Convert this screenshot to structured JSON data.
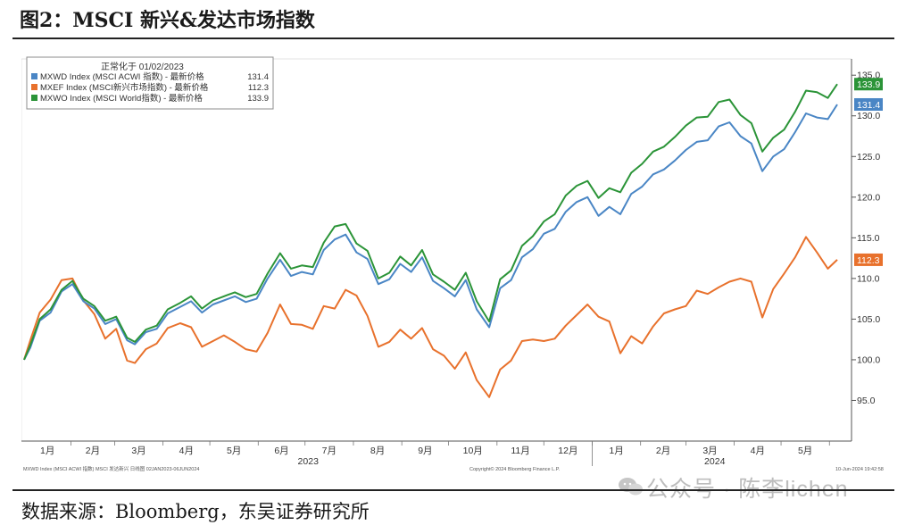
{
  "header": {
    "title": "图2：MSCI 新兴&发达市场指数"
  },
  "footer": {
    "source": "数据来源：Bloomberg，东吴证券研究所",
    "watermark": "公众号 · 陈李lichen",
    "note_left": "MXWD Index (MSCI ACWI 指数) MSCI 发达新兴  日线图 02JAN2023-06JUN2024",
    "note_center": "Copyright© 2024 Bloomberg Finance L.P.",
    "note_right": "10-Jun-2024 19:42:58"
  },
  "chart_data": {
    "type": "line",
    "legend": {
      "header": "正常化于 01/02/2023",
      "placement": "top-left"
    },
    "x_ticks": [
      "1月",
      "2月",
      "3月",
      "4月",
      "5月",
      "6月",
      "7月",
      "8月",
      "9月",
      "10月",
      "11月",
      "12月",
      "1月",
      "2月",
      "3月",
      "4月",
      "5月"
    ],
    "year_labels": [
      "2023",
      "2024"
    ],
    "ylim": [
      90,
      137
    ],
    "y_ticks": [
      "95.0",
      "100.0",
      "105.0",
      "110.0",
      "115.0",
      "120.0",
      "125.0",
      "130.0",
      "135.0"
    ],
    "y_tick_values": [
      95,
      100,
      105,
      110,
      115,
      120,
      125,
      130,
      135
    ],
    "grid": false,
    "x_range": [
      "2023-01-02",
      "2024-06-06"
    ],
    "series": [
      {
        "name": "MXWD Index (MSCI ACWI 指数) - 最新价格",
        "last_label": "131.4",
        "color": "#4a86c5",
        "points": [
          [
            "2023-01-02",
            100.0
          ],
          [
            "2023-01-06",
            101.5
          ],
          [
            "2023-01-12",
            104.8
          ],
          [
            "2023-01-19",
            105.8
          ],
          [
            "2023-01-26",
            108.4
          ],
          [
            "2023-02-02",
            109.3
          ],
          [
            "2023-02-09",
            107.2
          ],
          [
            "2023-02-16",
            106.3
          ],
          [
            "2023-02-23",
            104.4
          ],
          [
            "2023-03-02",
            105.0
          ],
          [
            "2023-03-09",
            102.4
          ],
          [
            "2023-03-14",
            101.9
          ],
          [
            "2023-03-21",
            103.4
          ],
          [
            "2023-03-28",
            103.8
          ],
          [
            "2023-04-04",
            105.7
          ],
          [
            "2023-04-12",
            106.5
          ],
          [
            "2023-04-19",
            107.2
          ],
          [
            "2023-04-26",
            105.8
          ],
          [
            "2023-05-03",
            106.8
          ],
          [
            "2023-05-10",
            107.3
          ],
          [
            "2023-05-17",
            107.8
          ],
          [
            "2023-05-24",
            107.1
          ],
          [
            "2023-05-31",
            107.5
          ],
          [
            "2023-06-07",
            110.0
          ],
          [
            "2023-06-15",
            112.3
          ],
          [
            "2023-06-22",
            110.3
          ],
          [
            "2023-06-29",
            110.8
          ],
          [
            "2023-07-06",
            110.5
          ],
          [
            "2023-07-13",
            113.5
          ],
          [
            "2023-07-20",
            114.8
          ],
          [
            "2023-07-27",
            115.4
          ],
          [
            "2023-08-03",
            113.2
          ],
          [
            "2023-08-10",
            112.4
          ],
          [
            "2023-08-17",
            109.3
          ],
          [
            "2023-08-24",
            109.9
          ],
          [
            "2023-08-31",
            111.8
          ],
          [
            "2023-09-07",
            110.8
          ],
          [
            "2023-09-14",
            112.6
          ],
          [
            "2023-09-21",
            109.7
          ],
          [
            "2023-09-28",
            108.8
          ],
          [
            "2023-10-05",
            107.8
          ],
          [
            "2023-10-12",
            109.8
          ],
          [
            "2023-10-19",
            106.2
          ],
          [
            "2023-10-27",
            104.0
          ],
          [
            "2023-11-03",
            108.8
          ],
          [
            "2023-11-10",
            109.8
          ],
          [
            "2023-11-17",
            112.6
          ],
          [
            "2023-11-24",
            113.6
          ],
          [
            "2023-12-01",
            115.5
          ],
          [
            "2023-12-08",
            116.1
          ],
          [
            "2023-12-15",
            118.2
          ],
          [
            "2023-12-22",
            119.4
          ],
          [
            "2023-12-29",
            120.0
          ],
          [
            "2024-01-05",
            117.7
          ],
          [
            "2024-01-12",
            118.8
          ],
          [
            "2024-01-19",
            117.9
          ],
          [
            "2024-01-26",
            120.4
          ],
          [
            "2024-02-02",
            121.3
          ],
          [
            "2024-02-09",
            122.8
          ],
          [
            "2024-02-16",
            123.4
          ],
          [
            "2024-02-23",
            124.5
          ],
          [
            "2024-03-01",
            125.8
          ],
          [
            "2024-03-08",
            126.8
          ],
          [
            "2024-03-15",
            127.0
          ],
          [
            "2024-03-22",
            128.7
          ],
          [
            "2024-03-29",
            129.2
          ],
          [
            "2024-04-05",
            127.5
          ],
          [
            "2024-04-12",
            126.6
          ],
          [
            "2024-04-19",
            123.2
          ],
          [
            "2024-04-26",
            125.0
          ],
          [
            "2024-05-03",
            125.9
          ],
          [
            "2024-05-10",
            128.0
          ],
          [
            "2024-05-17",
            130.3
          ],
          [
            "2024-05-24",
            129.8
          ],
          [
            "2024-05-31",
            129.6
          ],
          [
            "2024-06-06",
            131.4
          ]
        ]
      },
      {
        "name": "MXEF Index (MSCI新兴市场指数) - 最新价格",
        "last_label": "112.3",
        "color": "#e8712c",
        "points": [
          [
            "2023-01-02",
            100.0
          ],
          [
            "2023-01-06",
            102.4
          ],
          [
            "2023-01-12",
            105.8
          ],
          [
            "2023-01-19",
            107.4
          ],
          [
            "2023-01-26",
            109.8
          ],
          [
            "2023-02-02",
            110.0
          ],
          [
            "2023-02-09",
            107.3
          ],
          [
            "2023-02-16",
            105.6
          ],
          [
            "2023-02-23",
            102.6
          ],
          [
            "2023-03-02",
            103.8
          ],
          [
            "2023-03-09",
            99.9
          ],
          [
            "2023-03-14",
            99.6
          ],
          [
            "2023-03-21",
            101.3
          ],
          [
            "2023-03-28",
            102.0
          ],
          [
            "2023-04-04",
            103.9
          ],
          [
            "2023-04-12",
            104.5
          ],
          [
            "2023-04-19",
            104.0
          ],
          [
            "2023-04-26",
            101.6
          ],
          [
            "2023-05-03",
            102.3
          ],
          [
            "2023-05-10",
            103.0
          ],
          [
            "2023-05-17",
            102.2
          ],
          [
            "2023-05-24",
            101.3
          ],
          [
            "2023-05-31",
            101.0
          ],
          [
            "2023-06-07",
            103.3
          ],
          [
            "2023-06-15",
            106.8
          ],
          [
            "2023-06-22",
            104.4
          ],
          [
            "2023-06-29",
            104.3
          ],
          [
            "2023-07-06",
            103.8
          ],
          [
            "2023-07-13",
            106.6
          ],
          [
            "2023-07-20",
            106.3
          ],
          [
            "2023-07-27",
            108.6
          ],
          [
            "2023-08-03",
            107.9
          ],
          [
            "2023-08-10",
            105.4
          ],
          [
            "2023-08-17",
            101.6
          ],
          [
            "2023-08-24",
            102.2
          ],
          [
            "2023-08-31",
            103.7
          ],
          [
            "2023-09-07",
            102.6
          ],
          [
            "2023-09-14",
            103.9
          ],
          [
            "2023-09-21",
            101.3
          ],
          [
            "2023-09-28",
            100.5
          ],
          [
            "2023-10-05",
            98.9
          ],
          [
            "2023-10-12",
            100.9
          ],
          [
            "2023-10-19",
            97.5
          ],
          [
            "2023-10-27",
            95.4
          ],
          [
            "2023-11-03",
            98.8
          ],
          [
            "2023-11-10",
            99.9
          ],
          [
            "2023-11-17",
            102.3
          ],
          [
            "2023-11-24",
            102.5
          ],
          [
            "2023-12-01",
            102.3
          ],
          [
            "2023-12-08",
            102.6
          ],
          [
            "2023-12-15",
            104.2
          ],
          [
            "2023-12-22",
            105.5
          ],
          [
            "2023-12-29",
            106.8
          ],
          [
            "2024-01-05",
            105.3
          ],
          [
            "2024-01-12",
            104.7
          ],
          [
            "2024-01-19",
            100.8
          ],
          [
            "2024-01-26",
            102.9
          ],
          [
            "2024-02-02",
            102.0
          ],
          [
            "2024-02-09",
            104.1
          ],
          [
            "2024-02-16",
            105.7
          ],
          [
            "2024-02-23",
            106.2
          ],
          [
            "2024-03-01",
            106.6
          ],
          [
            "2024-03-08",
            108.5
          ],
          [
            "2024-03-15",
            108.1
          ],
          [
            "2024-03-22",
            108.9
          ],
          [
            "2024-03-29",
            109.6
          ],
          [
            "2024-04-05",
            110.0
          ],
          [
            "2024-04-12",
            109.6
          ],
          [
            "2024-04-19",
            105.2
          ],
          [
            "2024-04-26",
            108.7
          ],
          [
            "2024-05-03",
            110.6
          ],
          [
            "2024-05-10",
            112.6
          ],
          [
            "2024-05-17",
            115.1
          ],
          [
            "2024-05-24",
            113.2
          ],
          [
            "2024-05-31",
            111.2
          ],
          [
            "2024-06-06",
            112.3
          ]
        ]
      },
      {
        "name": "MXWO Index (MSCI World指数) - 最新价格",
        "last_label": "133.9",
        "color": "#2b9438",
        "points": [
          [
            "2023-01-02",
            100.0
          ],
          [
            "2023-01-06",
            101.8
          ],
          [
            "2023-01-12",
            105.0
          ],
          [
            "2023-01-19",
            106.2
          ],
          [
            "2023-01-26",
            108.6
          ],
          [
            "2023-02-02",
            109.7
          ],
          [
            "2023-02-09",
            107.5
          ],
          [
            "2023-02-16",
            106.6
          ],
          [
            "2023-02-23",
            104.8
          ],
          [
            "2023-03-02",
            105.3
          ],
          [
            "2023-03-09",
            102.7
          ],
          [
            "2023-03-14",
            102.2
          ],
          [
            "2023-03-21",
            103.7
          ],
          [
            "2023-03-28",
            104.2
          ],
          [
            "2023-04-04",
            106.2
          ],
          [
            "2023-04-12",
            107.0
          ],
          [
            "2023-04-19",
            107.8
          ],
          [
            "2023-04-26",
            106.3
          ],
          [
            "2023-05-03",
            107.3
          ],
          [
            "2023-05-10",
            107.8
          ],
          [
            "2023-05-17",
            108.3
          ],
          [
            "2023-05-24",
            107.7
          ],
          [
            "2023-05-31",
            108.1
          ],
          [
            "2023-06-07",
            110.6
          ],
          [
            "2023-06-15",
            113.1
          ],
          [
            "2023-06-22",
            111.2
          ],
          [
            "2023-06-29",
            111.6
          ],
          [
            "2023-07-06",
            111.4
          ],
          [
            "2023-07-13",
            114.4
          ],
          [
            "2023-07-20",
            116.4
          ],
          [
            "2023-07-27",
            116.7
          ],
          [
            "2023-08-03",
            114.3
          ],
          [
            "2023-08-10",
            113.4
          ],
          [
            "2023-08-17",
            110.0
          ],
          [
            "2023-08-24",
            110.7
          ],
          [
            "2023-08-31",
            112.7
          ],
          [
            "2023-09-07",
            111.6
          ],
          [
            "2023-09-14",
            113.5
          ],
          [
            "2023-09-21",
            110.5
          ],
          [
            "2023-09-28",
            109.6
          ],
          [
            "2023-10-05",
            108.6
          ],
          [
            "2023-10-12",
            110.7
          ],
          [
            "2023-10-19",
            107.2
          ],
          [
            "2023-10-27",
            104.7
          ],
          [
            "2023-11-03",
            109.9
          ],
          [
            "2023-11-10",
            111.0
          ],
          [
            "2023-11-17",
            114.0
          ],
          [
            "2023-11-24",
            115.2
          ],
          [
            "2023-12-01",
            117.0
          ],
          [
            "2023-12-08",
            117.9
          ],
          [
            "2023-12-15",
            120.2
          ],
          [
            "2023-12-22",
            121.4
          ],
          [
            "2023-12-29",
            122.0
          ],
          [
            "2024-01-05",
            119.9
          ],
          [
            "2024-01-12",
            121.1
          ],
          [
            "2024-01-19",
            120.6
          ],
          [
            "2024-01-26",
            123.0
          ],
          [
            "2024-02-02",
            124.1
          ],
          [
            "2024-02-09",
            125.6
          ],
          [
            "2024-02-16",
            126.2
          ],
          [
            "2024-02-23",
            127.4
          ],
          [
            "2024-03-01",
            128.8
          ],
          [
            "2024-03-08",
            129.8
          ],
          [
            "2024-03-15",
            129.9
          ],
          [
            "2024-03-22",
            131.7
          ],
          [
            "2024-03-29",
            132.0
          ],
          [
            "2024-04-05",
            130.1
          ],
          [
            "2024-04-12",
            129.1
          ],
          [
            "2024-04-19",
            125.6
          ],
          [
            "2024-04-26",
            127.3
          ],
          [
            "2024-05-03",
            128.3
          ],
          [
            "2024-05-10",
            130.5
          ],
          [
            "2024-05-17",
            133.1
          ],
          [
            "2024-05-24",
            132.9
          ],
          [
            "2024-05-31",
            132.2
          ],
          [
            "2024-06-06",
            133.9
          ]
        ]
      }
    ]
  }
}
